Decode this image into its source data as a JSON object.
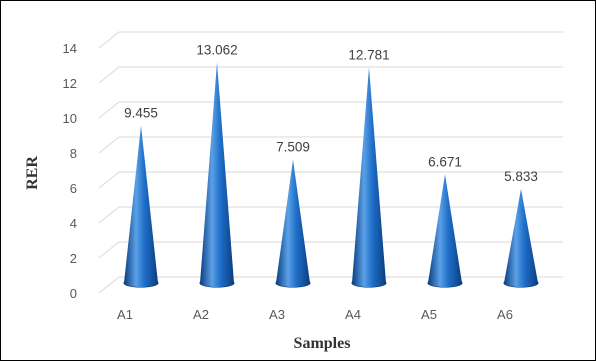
{
  "chart_data": {
    "type": "bar",
    "bar_shape": "3d-cone",
    "categories": [
      "A1",
      "A2",
      "A3",
      "A4",
      "A5",
      "A6"
    ],
    "values": [
      9.455,
      13.062,
      7.509,
      12.781,
      6.671,
      5.833
    ],
    "data_labels": [
      "9.455",
      "13.062",
      "7.509",
      "12.781",
      "6.671",
      "5.833"
    ],
    "xlabel": "Samples",
    "ylabel": "RER",
    "ylim": [
      0,
      14
    ],
    "yticks": [
      0,
      2,
      4,
      6,
      8,
      10,
      12,
      14
    ],
    "grid": true,
    "legend": "none",
    "colors": {
      "bar_light": "#5aa0e6",
      "bar_mid": "#1f6fc8",
      "bar_dark": "#0a3d80",
      "grid": "#d9d9d9",
      "tick_text": "#595959",
      "axis_title": "#333333"
    }
  }
}
